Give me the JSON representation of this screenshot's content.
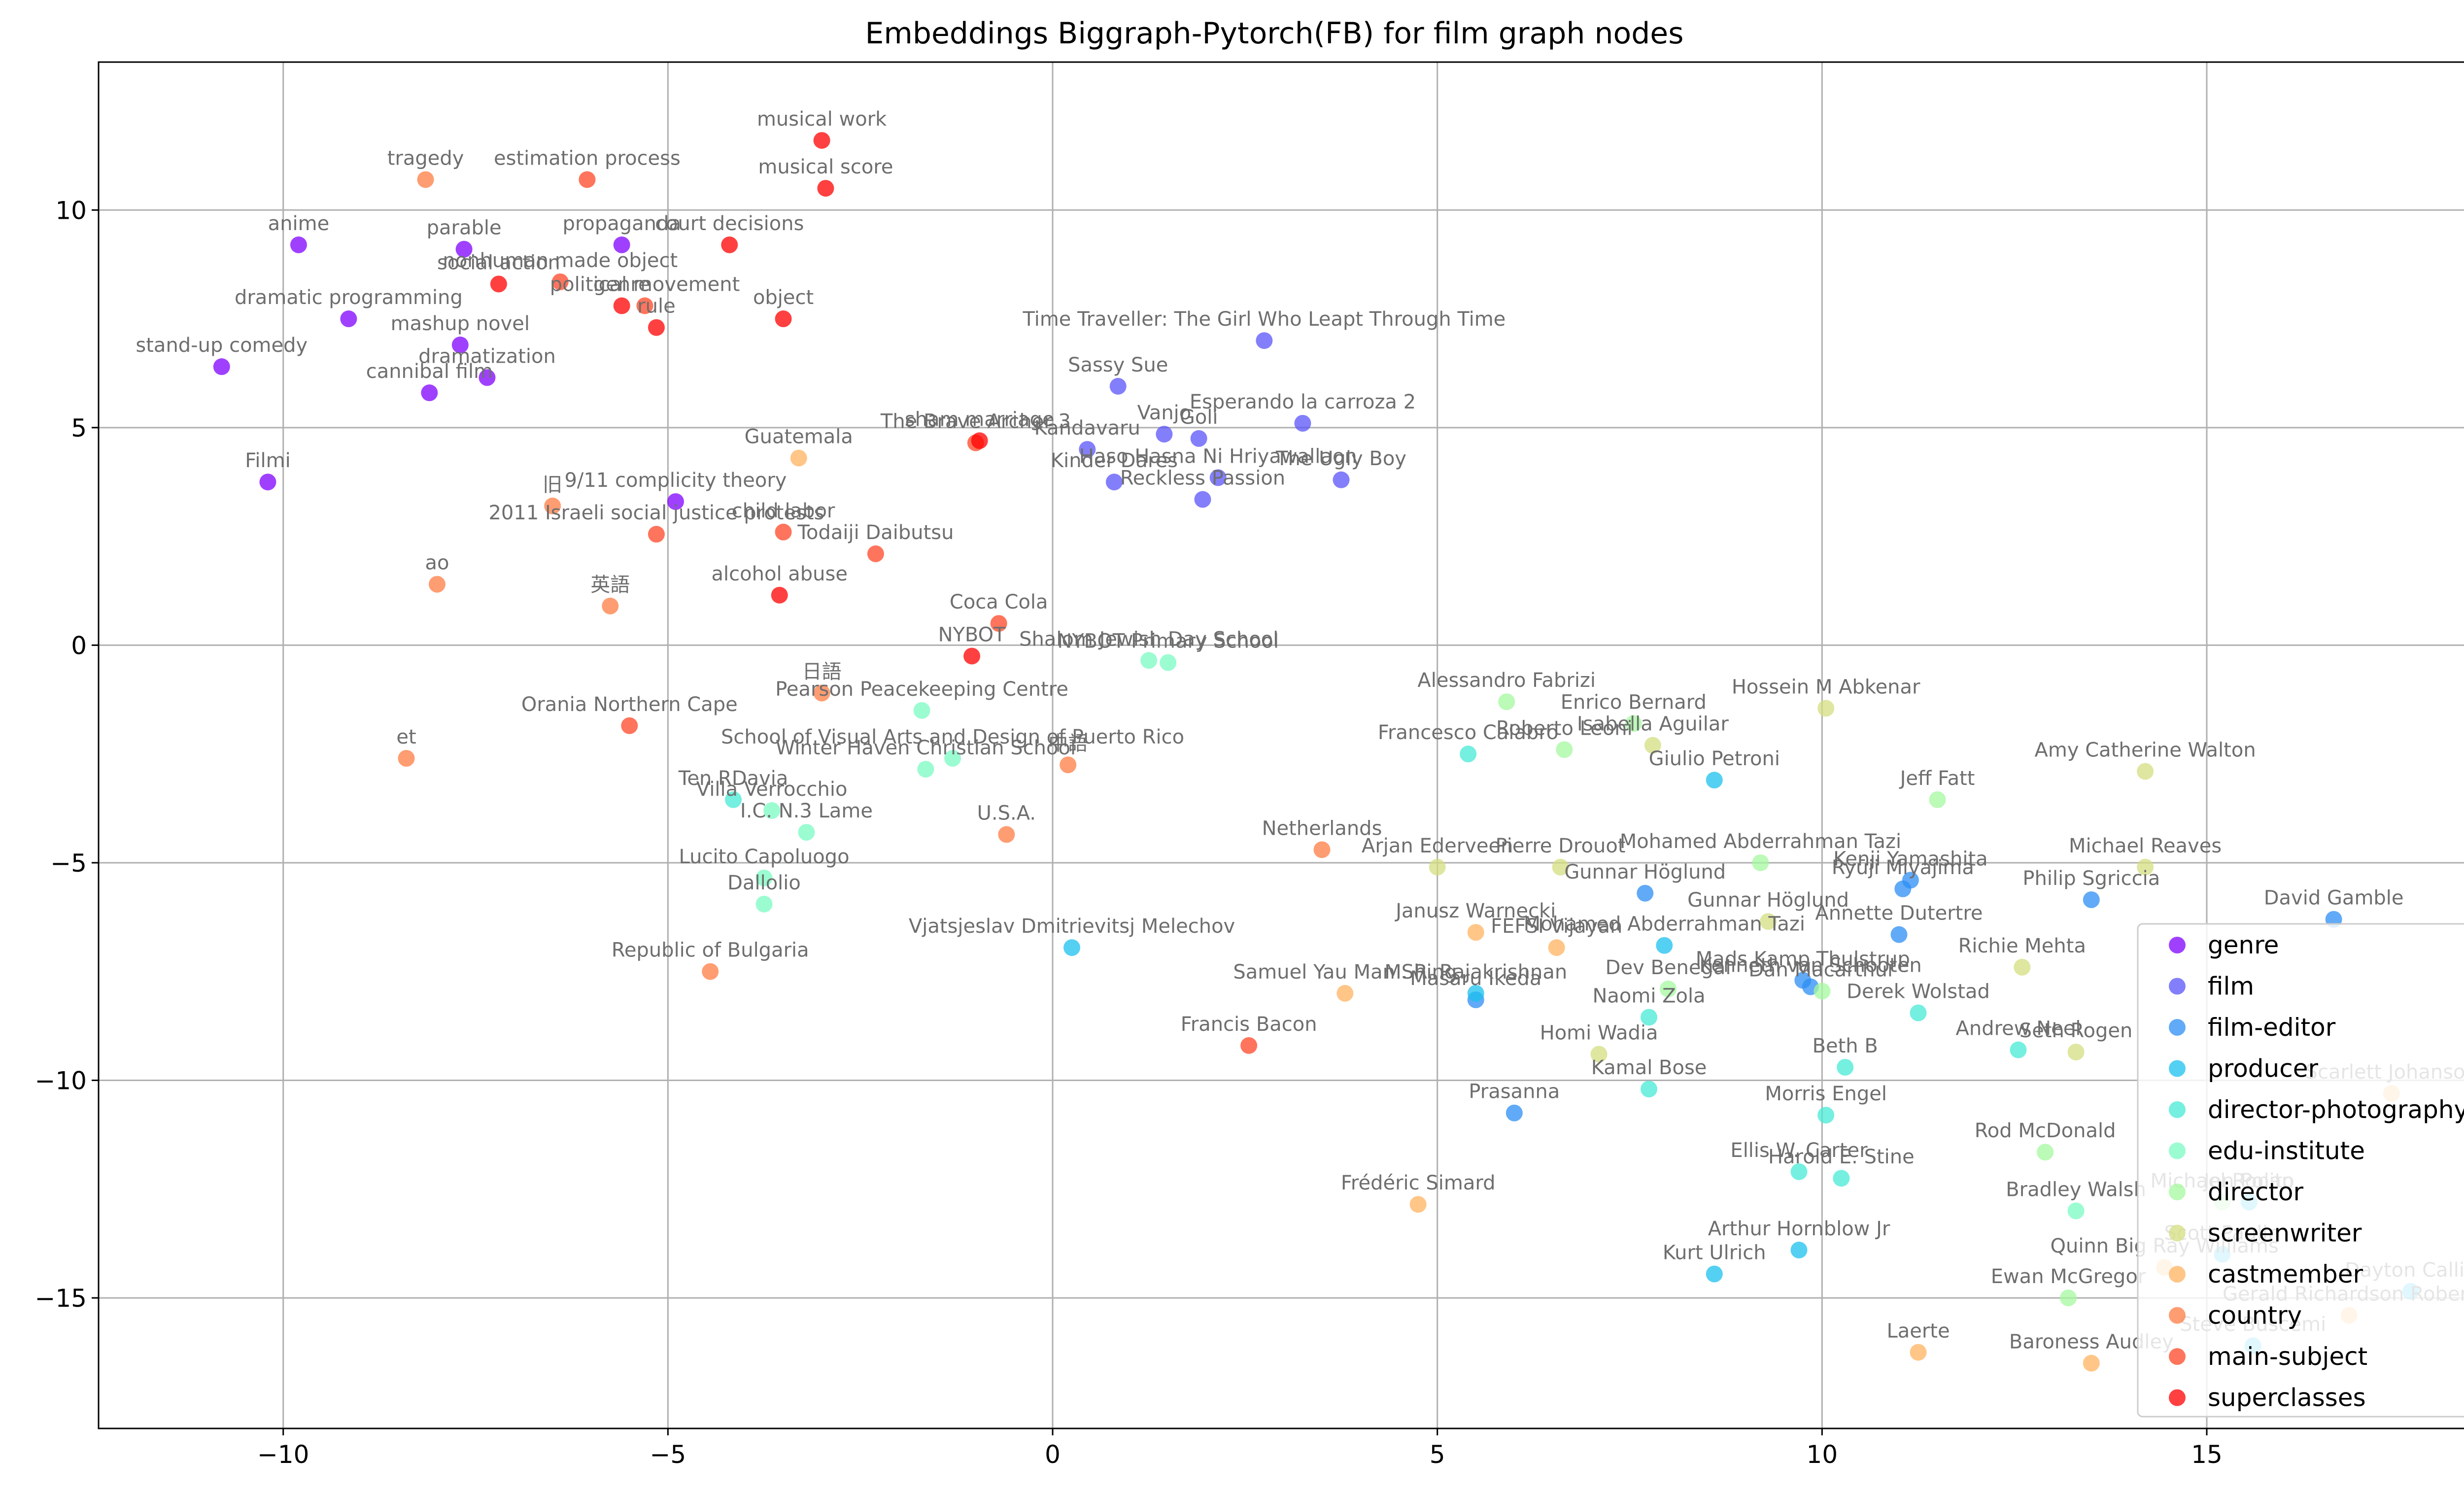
{
  "chart_data": {
    "type": "scatter",
    "title": "Embeddings Biggraph-Pytorch(FB) for film graph nodes",
    "xlabel": "",
    "ylabel": "",
    "xlim": [
      -12.4,
      19.4
    ],
    "ylim": [
      -18.0,
      13.4
    ],
    "x_ticks": [
      -10,
      -5,
      0,
      5,
      10,
      15
    ],
    "y_ticks": [
      -15,
      -10,
      -5,
      0,
      5,
      10
    ],
    "x_tick_labels": [
      "−10",
      "−5",
      "0",
      "5",
      "10",
      "15"
    ],
    "y_tick_labels": [
      "−15",
      "−10",
      "−5",
      "0",
      "5",
      "10"
    ],
    "grid": true,
    "legend_position": "lower-right",
    "series": [
      {
        "name": "genre",
        "color": "#8000ff",
        "points": [
          {
            "x": -10.8,
            "y": 6.4,
            "label": "stand-up comedy"
          },
          {
            "x": -10.2,
            "y": 3.75,
            "label": "Filmi"
          },
          {
            "x": -9.8,
            "y": 9.2,
            "label": "anime"
          },
          {
            "x": -9.15,
            "y": 7.5,
            "label": "dramatic programming"
          },
          {
            "x": -8.1,
            "y": 5.8,
            "label": "cannibal film"
          },
          {
            "x": -7.7,
            "y": 6.9,
            "label": "mashup novel"
          },
          {
            "x": -7.35,
            "y": 6.15,
            "label": "dramatization"
          },
          {
            "x": -7.65,
            "y": 9.1,
            "label": "parable"
          },
          {
            "x": -5.6,
            "y": 9.2,
            "label": "propaganda"
          },
          {
            "x": -4.9,
            "y": 3.3,
            "label": "9/11 complicity theory"
          }
        ]
      },
      {
        "name": "film",
        "color": "#5a54fa",
        "points": [
          {
            "x": 2.75,
            "y": 7.0,
            "label": "Time Traveller: The Girl Who Leapt Through Time"
          },
          {
            "x": 0.85,
            "y": 5.95,
            "label": "Sassy Sue"
          },
          {
            "x": 3.25,
            "y": 5.1,
            "label": "Esperando la carroza 2"
          },
          {
            "x": 1.45,
            "y": 4.85,
            "label": "Vanjo"
          },
          {
            "x": 1.9,
            "y": 4.75,
            "label": "Goli"
          },
          {
            "x": 0.45,
            "y": 4.5,
            "label": "Kandavaru"
          },
          {
            "x": 0.8,
            "y": 3.75,
            "label": "Kinder Dares"
          },
          {
            "x": 2.15,
            "y": 3.85,
            "label": "Haso Hasna Ni Hriyawallaon"
          },
          {
            "x": 1.95,
            "y": 3.35,
            "label": "Reckless Passion"
          },
          {
            "x": 3.75,
            "y": 3.8,
            "label": "The Ugly Boy"
          }
        ]
      },
      {
        "name": "film-editor",
        "color": "#2c8df4",
        "points": [
          {
            "x": 7.7,
            "y": -5.7,
            "label": "Gunnar Höglund"
          },
          {
            "x": 9.75,
            "y": -7.7,
            "label": "Mads Kamp Thulstrup"
          },
          {
            "x": 9.85,
            "y": -7.85,
            "label": "Kenneth van Schooten"
          },
          {
            "x": 11.05,
            "y": -5.6,
            "label": "Ryūji Miyajima"
          },
          {
            "x": 11.15,
            "y": -5.4,
            "label": "Kenji Yamashita"
          },
          {
            "x": 11.0,
            "y": -6.65,
            "label": "Annette Dutertre"
          },
          {
            "x": 13.5,
            "y": -5.85,
            "label": "Philip Sgriccia"
          },
          {
            "x": 16.65,
            "y": -6.3,
            "label": "David Gamble"
          },
          {
            "x": 6.0,
            "y": -10.75,
            "label": "Prasanna"
          },
          {
            "x": 5.5,
            "y": -8.15,
            "label": "Masaru Ikeda"
          }
        ]
      },
      {
        "name": "producer",
        "color": "#1bc0ee",
        "points": [
          {
            "x": 8.6,
            "y": -3.1,
            "label": "Giulio Petroni"
          },
          {
            "x": 7.95,
            "y": -6.9,
            "label": "Mohamed Abderrahman Tazi"
          },
          {
            "x": 0.25,
            "y": -6.95,
            "label": "Vjatsjeslav Dmitrievitsj Melechov"
          },
          {
            "x": 5.5,
            "y": -8.0,
            "label": "M. R. Rajakrishnan"
          },
          {
            "x": 8.6,
            "y": -14.45,
            "label": "Kurt Ulrich"
          },
          {
            "x": 9.7,
            "y": -13.9,
            "label": "Arthur Hornblow Jr"
          },
          {
            "x": 15.2,
            "y": -14.0,
            "label": "Scott Paulin"
          },
          {
            "x": 17.65,
            "y": -14.85,
            "label": "Dayton Callie"
          },
          {
            "x": 15.6,
            "y": -16.1,
            "label": "Steve Buscemi"
          },
          {
            "x": 15.55,
            "y": -12.8,
            "label": "Jon Polito"
          }
        ]
      },
      {
        "name": "director-photography",
        "color": "#46e9d6",
        "points": [
          {
            "x": 5.4,
            "y": -2.5,
            "label": "Francesco Calabro"
          },
          {
            "x": 7.75,
            "y": -8.55,
            "label": "Naomi Zola"
          },
          {
            "x": 7.75,
            "y": -10.2,
            "label": "Kamal Bose"
          },
          {
            "x": 10.05,
            "y": -10.8,
            "label": "Morris Engel"
          },
          {
            "x": 10.3,
            "y": -9.7,
            "label": "Beth B"
          },
          {
            "x": 11.25,
            "y": -8.45,
            "label": "Derek Wolstad"
          },
          {
            "x": 12.55,
            "y": -9.3,
            "label": "Andrew Neel"
          },
          {
            "x": 9.7,
            "y": -12.1,
            "label": "Ellis W. Carter"
          },
          {
            "x": 10.25,
            "y": -12.25,
            "label": "Harold E. Stine"
          },
          {
            "x": -4.15,
            "y": -3.55,
            "label": "Ten RDavia"
          }
        ]
      },
      {
        "name": "edu-institute",
        "color": "#79fbc1",
        "points": [
          {
            "x": 1.25,
            "y": -0.35,
            "label": "Shalom Jewish Day School"
          },
          {
            "x": 1.5,
            "y": -0.4,
            "label": "NYBOT Primary School"
          },
          {
            "x": -1.7,
            "y": -1.5,
            "label": "Pearson Peacekeeping Centre"
          },
          {
            "x": -1.65,
            "y": -2.85,
            "label": "Winter Haven Christian School"
          },
          {
            "x": -1.3,
            "y": -2.6,
            "label": "School of Visual Arts and Design of Puerto Rico"
          },
          {
            "x": -3.65,
            "y": -3.8,
            "label": "Villa Verrocchio"
          },
          {
            "x": -3.2,
            "y": -4.3,
            "label": "I.C. N.3 Lame"
          },
          {
            "x": -3.75,
            "y": -5.35,
            "label": "Lucito Capoluogo"
          },
          {
            "x": -3.75,
            "y": -5.95,
            "label": "Dallolio"
          },
          {
            "x": 13.3,
            "y": -13.0,
            "label": "Bradley Walsh"
          }
        ]
      },
      {
        "name": "director",
        "color": "#a4f89f",
        "points": [
          {
            "x": 5.9,
            "y": -1.3,
            "label": "Alessandro Fabrizi"
          },
          {
            "x": 7.55,
            "y": -1.8,
            "label": "Enrico Bernard"
          },
          {
            "x": 6.65,
            "y": -2.4,
            "label": "Roberto Leoni"
          },
          {
            "x": 11.5,
            "y": -3.55,
            "label": "Jeff Fatt"
          },
          {
            "x": 9.2,
            "y": -5.0,
            "label": "Mohamed Abderrahman Tazi"
          },
          {
            "x": 8.0,
            "y": -7.9,
            "label": "Dev Benegal"
          },
          {
            "x": 10.0,
            "y": -7.95,
            "label": "Dan Macarthur"
          },
          {
            "x": 12.9,
            "y": -11.65,
            "label": "Rod McDonald"
          },
          {
            "x": 13.2,
            "y": -15.0,
            "label": "Ewan McGregor"
          },
          {
            "x": 15.2,
            "y": -12.8,
            "label": "Michael Ronan"
          }
        ]
      },
      {
        "name": "screenwriter",
        "color": "#d4dd80",
        "points": [
          {
            "x": 10.05,
            "y": -1.45,
            "label": "Hossein M Abkenar"
          },
          {
            "x": 7.8,
            "y": -2.3,
            "label": "Isabella Aguilar"
          },
          {
            "x": 14.2,
            "y": -2.9,
            "label": "Amy Catherine Walton"
          },
          {
            "x": 5.0,
            "y": -5.1,
            "label": "Arjan Ederveen"
          },
          {
            "x": 6.6,
            "y": -5.1,
            "label": "Pierre Drouot"
          },
          {
            "x": 9.3,
            "y": -6.35,
            "label": "Gunnar Höglund"
          },
          {
            "x": 14.2,
            "y": -5.1,
            "label": "Michael Reaves"
          },
          {
            "x": 12.6,
            "y": -7.4,
            "label": "Richie Mehta"
          },
          {
            "x": 7.1,
            "y": -9.4,
            "label": "Homi Wadia"
          },
          {
            "x": 13.3,
            "y": -9.35,
            "label": "Seth Rogen"
          }
        ]
      },
      {
        "name": "castmember",
        "color": "#ffb360",
        "points": [
          {
            "x": -3.3,
            "y": 4.3,
            "label": "Guatemala"
          },
          {
            "x": 3.8,
            "y": -8.0,
            "label": "Samuel Yau Man Shing"
          },
          {
            "x": 4.75,
            "y": -12.85,
            "label": "Frédéric Simard"
          },
          {
            "x": 5.5,
            "y": -6.6,
            "label": "Janusz Warnecki"
          },
          {
            "x": 6.55,
            "y": -6.95,
            "label": "FEFSI Vijayan"
          },
          {
            "x": 11.25,
            "y": -16.25,
            "label": "Laerte"
          },
          {
            "x": 13.5,
            "y": -16.5,
            "label": "Baroness Audley"
          },
          {
            "x": 17.4,
            "y": -10.3,
            "label": "Scarlett Johanson"
          },
          {
            "x": 16.85,
            "y": -15.4,
            "label": "Gerald Richardson Robert"
          },
          {
            "x": 14.45,
            "y": -14.3,
            "label": "Quinn Big Ray Williams"
          }
        ]
      },
      {
        "name": "country",
        "color": "#ff7c43",
        "points": [
          {
            "x": -6.5,
            "y": 3.2,
            "label": "旧"
          },
          {
            "x": -8.0,
            "y": 1.4,
            "label": "ao"
          },
          {
            "x": -5.75,
            "y": 0.9,
            "label": "英語"
          },
          {
            "x": -3.0,
            "y": -1.1,
            "label": "日語"
          },
          {
            "x": 0.2,
            "y": -2.75,
            "label": "中語"
          },
          {
            "x": -0.6,
            "y": -4.35,
            "label": "U.S.A."
          },
          {
            "x": 3.5,
            "y": -4.7,
            "label": "Netherlands"
          },
          {
            "x": -8.4,
            "y": -2.6,
            "label": "et"
          },
          {
            "x": -4.45,
            "y": -7.5,
            "label": "Republic of Bulgaria"
          },
          {
            "x": -8.15,
            "y": 10.7,
            "label": "tragedy"
          }
        ]
      },
      {
        "name": "main-subject",
        "color": "#ff4525",
        "points": [
          {
            "x": -6.4,
            "y": 8.35,
            "label": "nonhuman made object"
          },
          {
            "x": -6.05,
            "y": 10.7,
            "label": "estimation process"
          },
          {
            "x": -5.3,
            "y": 7.8,
            "label": "political movement"
          },
          {
            "x": -5.15,
            "y": 2.55,
            "label": "2011 Israeli social justice protests"
          },
          {
            "x": -3.5,
            "y": 2.6,
            "label": "child labor"
          },
          {
            "x": -2.3,
            "y": 2.1,
            "label": "Todaiji Daibutsu"
          },
          {
            "x": -0.7,
            "y": 0.5,
            "label": "Coca Cola"
          },
          {
            "x": -5.5,
            "y": -1.85,
            "label": "Orania Northern Cape"
          },
          {
            "x": 2.55,
            "y": -9.2,
            "label": "Francis Bacon"
          },
          {
            "x": -1.0,
            "y": 4.65,
            "label": "The Brave Archer 3"
          }
        ]
      },
      {
        "name": "superclasses",
        "color": "#ff0000",
        "points": [
          {
            "x": -3.0,
            "y": 11.6,
            "label": "musical work"
          },
          {
            "x": -2.95,
            "y": 10.5,
            "label": "musical score"
          },
          {
            "x": -4.2,
            "y": 9.2,
            "label": "court decisions"
          },
          {
            "x": -7.2,
            "y": 8.3,
            "label": "social action"
          },
          {
            "x": -5.6,
            "y": 7.8,
            "label": "genre"
          },
          {
            "x": -5.15,
            "y": 7.3,
            "label": "rule"
          },
          {
            "x": -3.5,
            "y": 7.5,
            "label": "object"
          },
          {
            "x": -3.55,
            "y": 1.15,
            "label": "alcohol abuse"
          },
          {
            "x": -1.05,
            "y": -0.25,
            "label": "NYBOT"
          },
          {
            "x": -0.95,
            "y": 4.7,
            "label": "sham marriage"
          }
        ]
      }
    ]
  }
}
